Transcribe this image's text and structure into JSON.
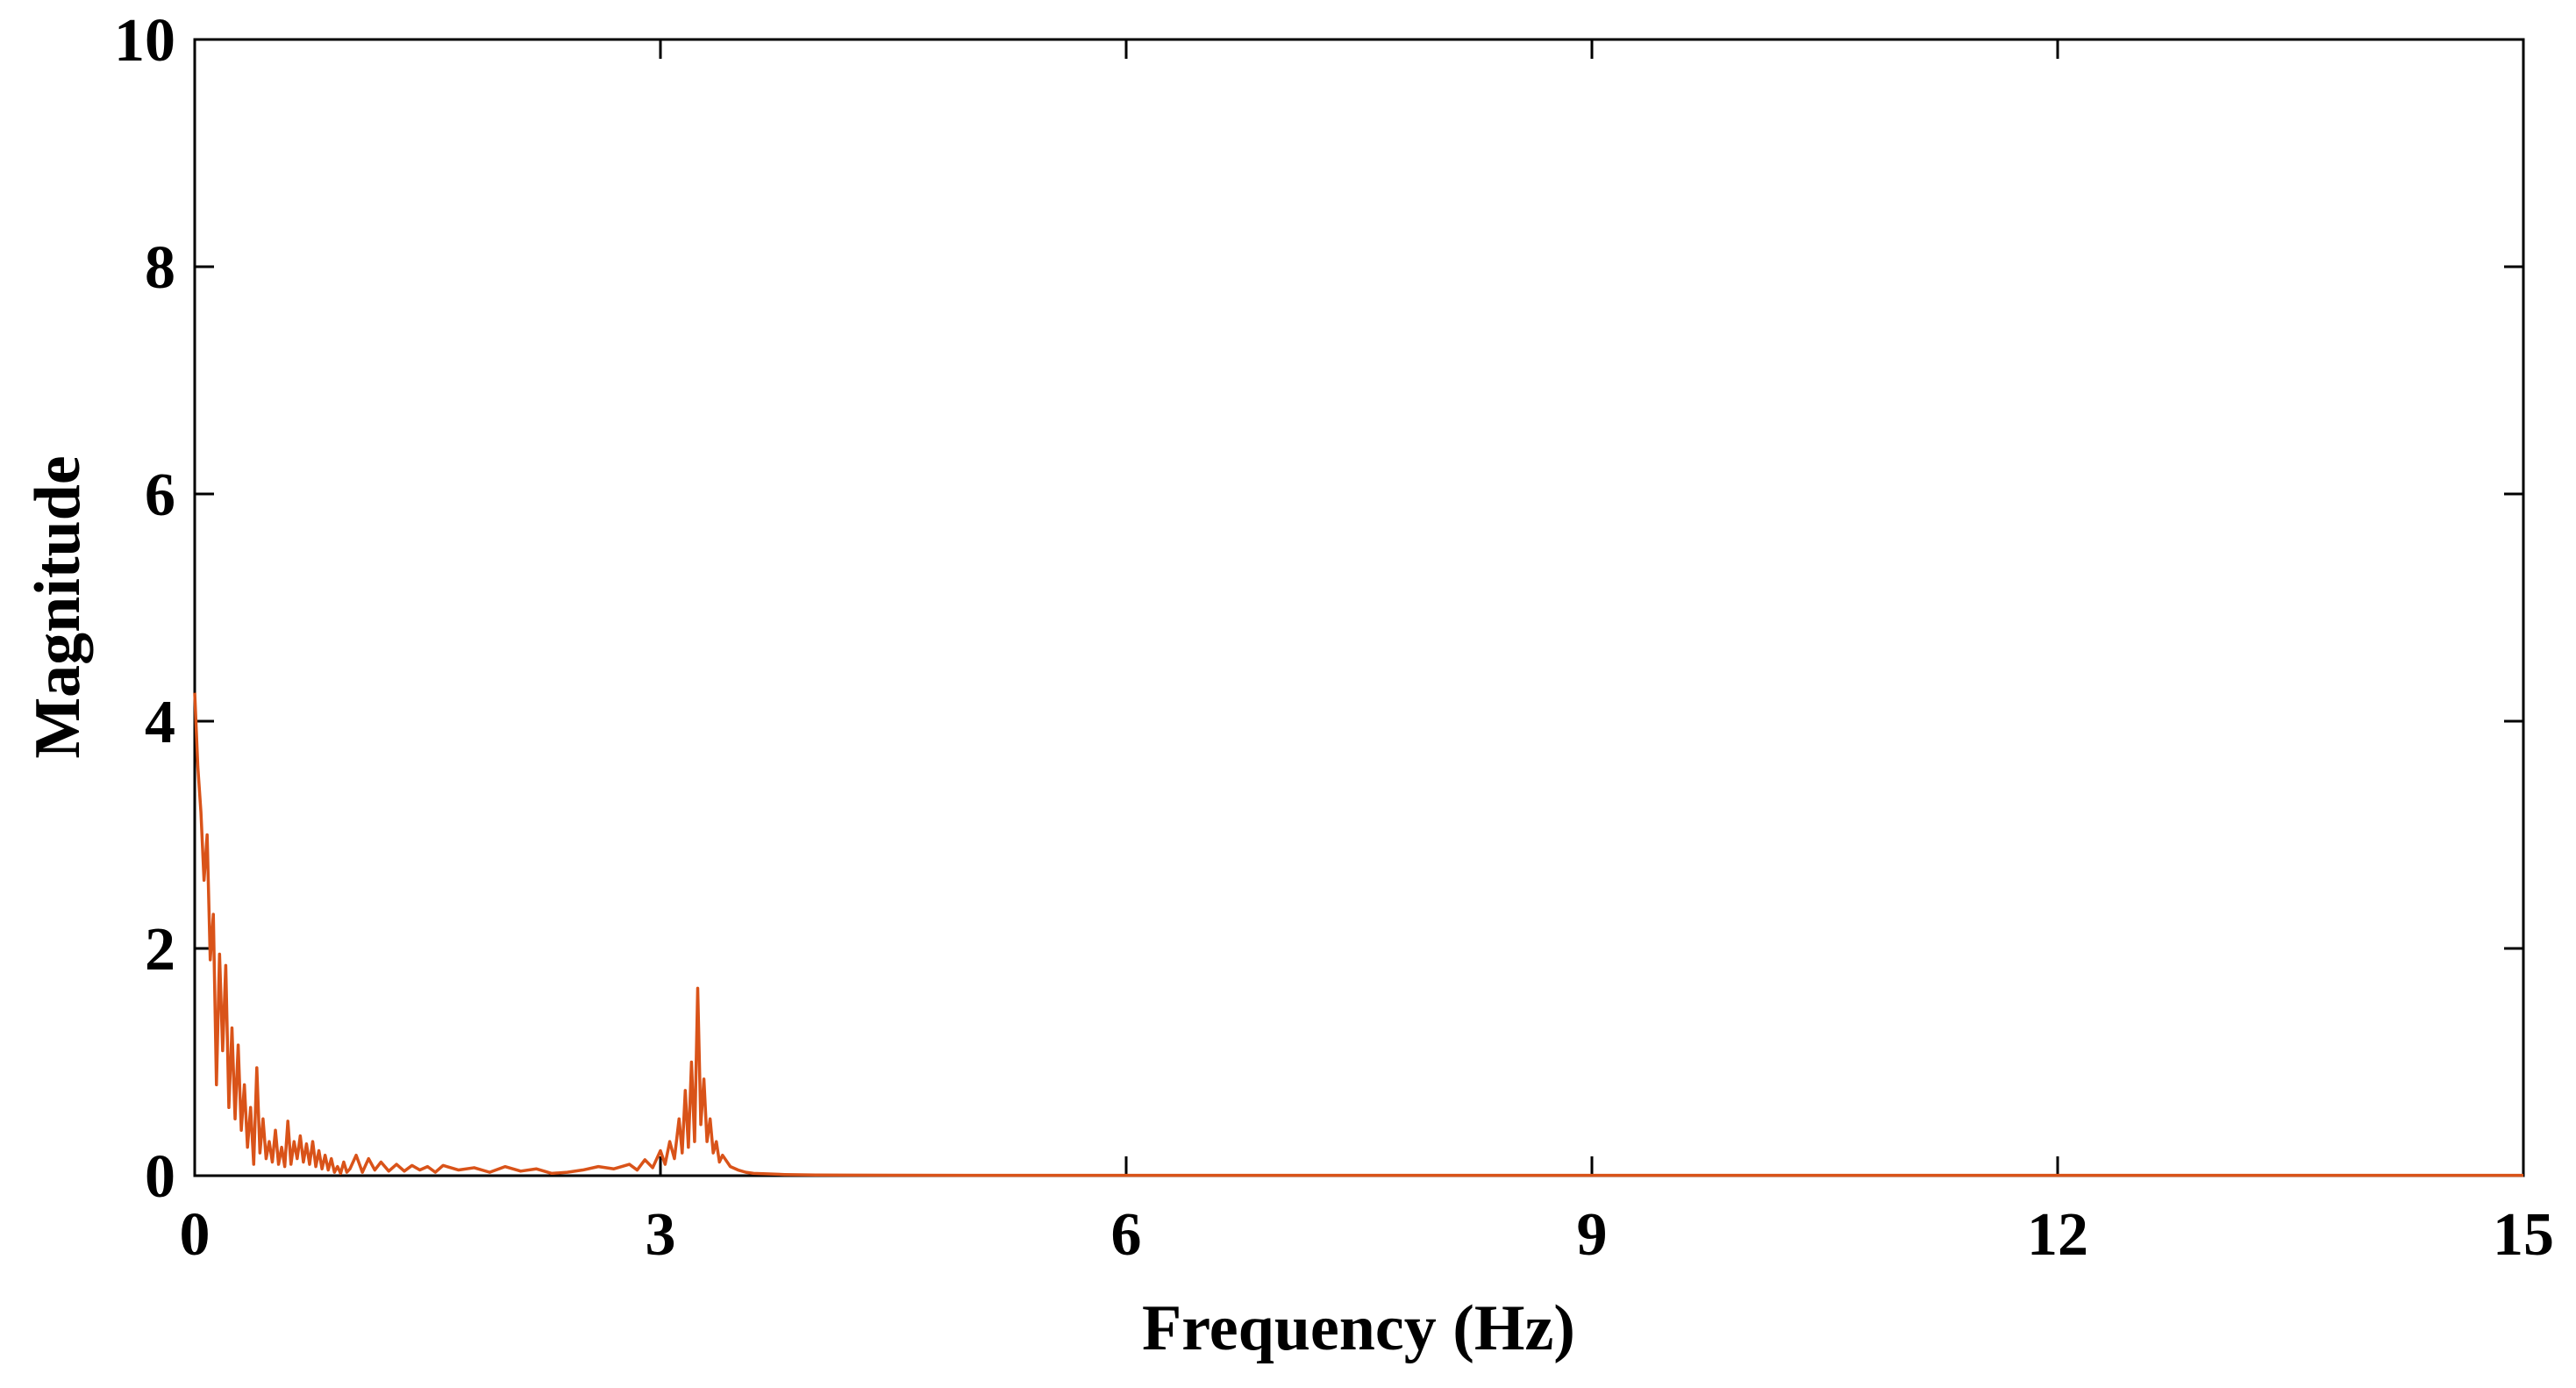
{
  "chart_data": {
    "type": "line",
    "title": "",
    "xlabel": "Frequency (Hz)",
    "ylabel": "Magnitude",
    "xlim": [
      0,
      15
    ],
    "ylim": [
      0,
      10
    ],
    "xticks": [
      "0",
      "3",
      "6",
      "9",
      "12",
      "15"
    ],
    "yticks": [
      "0",
      "2",
      "4",
      "6",
      "8",
      "10"
    ],
    "grid": false,
    "legend": "none",
    "line_color": "#D95319",
    "series": [
      {
        "x": [
          0.0,
          0.02,
          0.04,
          0.06,
          0.08,
          0.1,
          0.12,
          0.14,
          0.16,
          0.18,
          0.2,
          0.22,
          0.24,
          0.26,
          0.28,
          0.3,
          0.32,
          0.34,
          0.36,
          0.38,
          0.4,
          0.42,
          0.44,
          0.46,
          0.48,
          0.5,
          0.52,
          0.54,
          0.56,
          0.58,
          0.6,
          0.62,
          0.64,
          0.66,
          0.68,
          0.7,
          0.72,
          0.74,
          0.76,
          0.78,
          0.8,
          0.82,
          0.84,
          0.86,
          0.88,
          0.9,
          0.92,
          0.94,
          0.96,
          0.98,
          1.0,
          1.04,
          1.08,
          1.12,
          1.16,
          1.2,
          1.25,
          1.3,
          1.35,
          1.4,
          1.45,
          1.5,
          1.55,
          1.6,
          1.7,
          1.8,
          1.9,
          2.0,
          2.1,
          2.2,
          2.3,
          2.4,
          2.5,
          2.6,
          2.7,
          2.8,
          2.85,
          2.9,
          2.95,
          3.0,
          3.03,
          3.06,
          3.09,
          3.12,
          3.14,
          3.16,
          3.18,
          3.2,
          3.22,
          3.24,
          3.26,
          3.28,
          3.3,
          3.32,
          3.34,
          3.36,
          3.38,
          3.4,
          3.45,
          3.5,
          3.55,
          3.6,
          3.7,
          3.8,
          3.9,
          4.0,
          4.2,
          4.5,
          5.0,
          6.0,
          7.0,
          8.0,
          9.0,
          10.0,
          11.0,
          12.0,
          13.0,
          14.0,
          15.0
        ],
        "y": [
          4.25,
          3.6,
          3.2,
          2.6,
          3.0,
          1.9,
          2.3,
          0.8,
          1.95,
          1.1,
          1.85,
          0.6,
          1.3,
          0.5,
          1.15,
          0.4,
          0.8,
          0.25,
          0.6,
          0.1,
          0.95,
          0.2,
          0.5,
          0.15,
          0.3,
          0.12,
          0.4,
          0.1,
          0.25,
          0.08,
          0.48,
          0.1,
          0.3,
          0.15,
          0.35,
          0.12,
          0.28,
          0.1,
          0.3,
          0.08,
          0.22,
          0.06,
          0.18,
          0.05,
          0.15,
          0.03,
          0.08,
          0.02,
          0.12,
          0.03,
          0.06,
          0.18,
          0.03,
          0.15,
          0.05,
          0.12,
          0.04,
          0.1,
          0.04,
          0.09,
          0.05,
          0.08,
          0.03,
          0.09,
          0.05,
          0.07,
          0.03,
          0.08,
          0.04,
          0.06,
          0.02,
          0.03,
          0.05,
          0.08,
          0.06,
          0.1,
          0.05,
          0.14,
          0.07,
          0.22,
          0.1,
          0.3,
          0.15,
          0.5,
          0.2,
          0.75,
          0.25,
          1.0,
          0.3,
          1.65,
          0.45,
          0.85,
          0.3,
          0.5,
          0.2,
          0.3,
          0.12,
          0.18,
          0.08,
          0.05,
          0.03,
          0.02,
          0.015,
          0.01,
          0.008,
          0.006,
          0.005,
          0.004,
          0.003,
          0.003,
          0.003,
          0.003,
          0.003,
          0.003,
          0.003,
          0.003,
          0.003,
          0.003,
          0.003
        ]
      }
    ]
  }
}
